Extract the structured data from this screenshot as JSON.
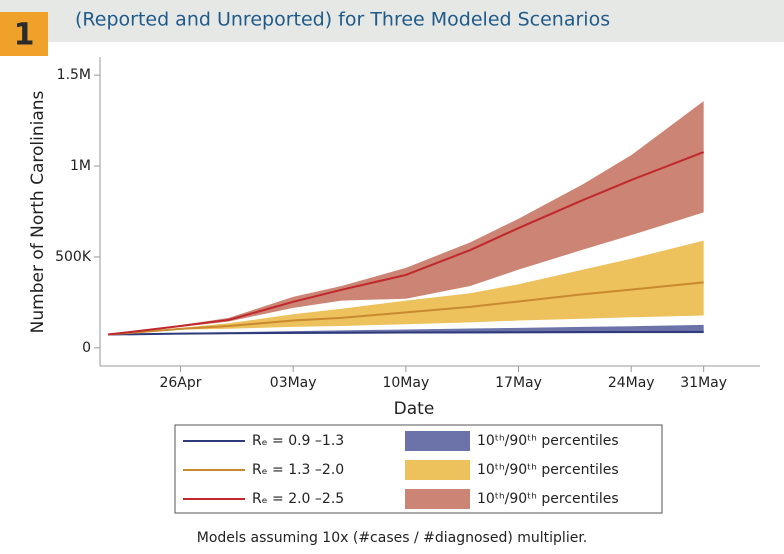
{
  "chart_data": {
    "type": "band-line",
    "badge": "1",
    "title": "(Reported and Unreported) for Three Modeled Scenarios",
    "ylabel": "Number of North Carolinians",
    "xlabel": "Date",
    "note": "Models assuming 10x (#cases / #diagnosed) multiplier.",
    "x": [
      -4.5,
      0,
      3,
      7,
      10,
      14,
      18,
      21,
      25,
      28,
      32.5
    ],
    "xlim": [
      -5,
      36
    ],
    "xticks": [
      {
        "value": 0,
        "label": "26Apr"
      },
      {
        "value": 7,
        "label": "03May"
      },
      {
        "value": 14,
        "label": "10May"
      },
      {
        "value": 21,
        "label": "17May"
      },
      {
        "value": 28,
        "label": "24May"
      },
      {
        "value": 32.5,
        "label": "31May"
      }
    ],
    "ylim": [
      -100000,
      1600000
    ],
    "yticks": [
      {
        "value": 0,
        "label": "0"
      },
      {
        "value": 500000,
        "label": "500K"
      },
      {
        "value": 1000000,
        "label": "1M"
      },
      {
        "value": 1500000,
        "label": "1.5M"
      }
    ],
    "series": [
      {
        "name": "Rₑ = 0.9 –1.3",
        "color": "#2e3a7c",
        "values": [
          73000,
          78000,
          80000,
          82000,
          83000,
          84000,
          85000,
          86000,
          87000,
          87000,
          88000
        ],
        "band": {
          "name": "10ᵗʰ/90ᵗʰ percentiles",
          "color": "#6b73a8",
          "lower": [
            73000,
            75000,
            76000,
            77000,
            78000,
            79000,
            79000,
            80000,
            80000,
            81000,
            81000
          ],
          "upper": [
            73000,
            82000,
            86000,
            92000,
            96000,
            101000,
            106000,
            110000,
            115000,
            119000,
            126000
          ]
        }
      },
      {
        "name": "Rₑ = 1.3 –2.0",
        "color": "#c8892f",
        "values": [
          73000,
          104000,
          120000,
          150000,
          165000,
          195000,
          225000,
          255000,
          295000,
          320000,
          360000
        ],
        "band": {
          "name": "10ᵗʰ/90ᵗʰ percentiles",
          "color": "#edc15c",
          "lower": [
            73000,
            100000,
            105000,
            115000,
            120000,
            130000,
            140000,
            150000,
            160000,
            168000,
            178000
          ],
          "upper": [
            73000,
            110000,
            135000,
            185000,
            215000,
            260000,
            300000,
            350000,
            430000,
            490000,
            590000
          ]
        }
      },
      {
        "name": "Rₑ = 2.0 –2.5",
        "color": "#c0282d",
        "values": [
          73000,
          120000,
          154000,
          253000,
          319000,
          401000,
          538000,
          659000,
          813000,
          923000,
          1077000
        ],
        "band": {
          "name": "10ᵗʰ/90ᵗʰ percentiles",
          "color": "#cc8474",
          "lower": [
            73000,
            115000,
            145000,
            220000,
            260000,
            270000,
            340000,
            430000,
            540000,
            620000,
            745000
          ],
          "upper": [
            73000,
            125000,
            165000,
            280000,
            340000,
            440000,
            580000,
            710000,
            900000,
            1060000,
            1357000
          ]
        }
      }
    ]
  }
}
